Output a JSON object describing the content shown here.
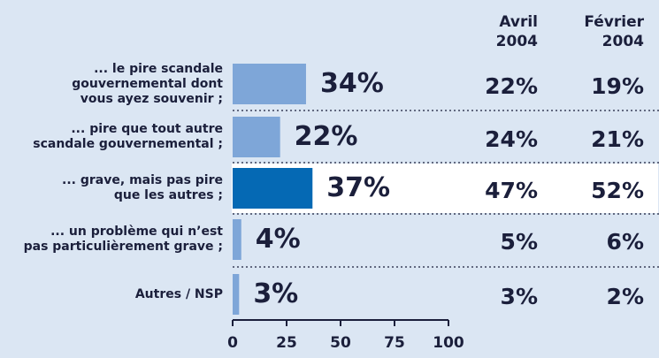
{
  "chart_data": {
    "type": "bar",
    "orientation": "horizontal",
    "categories": [
      "... le pire scandale\ngouvernemental dont\nvous ayez souvenir ;",
      "... pire que tout autre\nscandale gouvernemental ;",
      "... grave, mais pas pire\nque les autres ;",
      "... un problème qui n’est\npas particulièrement grave ;",
      "Autres / NSP"
    ],
    "values": [
      34,
      22,
      37,
      4,
      3
    ],
    "value_labels": [
      "34%",
      "22%",
      "37%",
      "4%",
      "3%"
    ],
    "color": "#7ea6d8",
    "highlight_color": "#0569b4",
    "highlight": 2,
    "xlim": [
      0,
      100
    ],
    "xticks": [
      0,
      25,
      50,
      75,
      100
    ],
    "columns": [
      {
        "name": "Avril\n2004",
        "values": [
          22,
          24,
          47,
          5,
          3
        ],
        "value_labels": [
          "22%",
          "24%",
          "47%",
          "5%",
          "3%"
        ]
      },
      {
        "name": "Février\n2004",
        "values": [
          19,
          21,
          52,
          6,
          2
        ],
        "value_labels": [
          "19%",
          "21%",
          "52%",
          "6%",
          "2%"
        ]
      }
    ]
  }
}
